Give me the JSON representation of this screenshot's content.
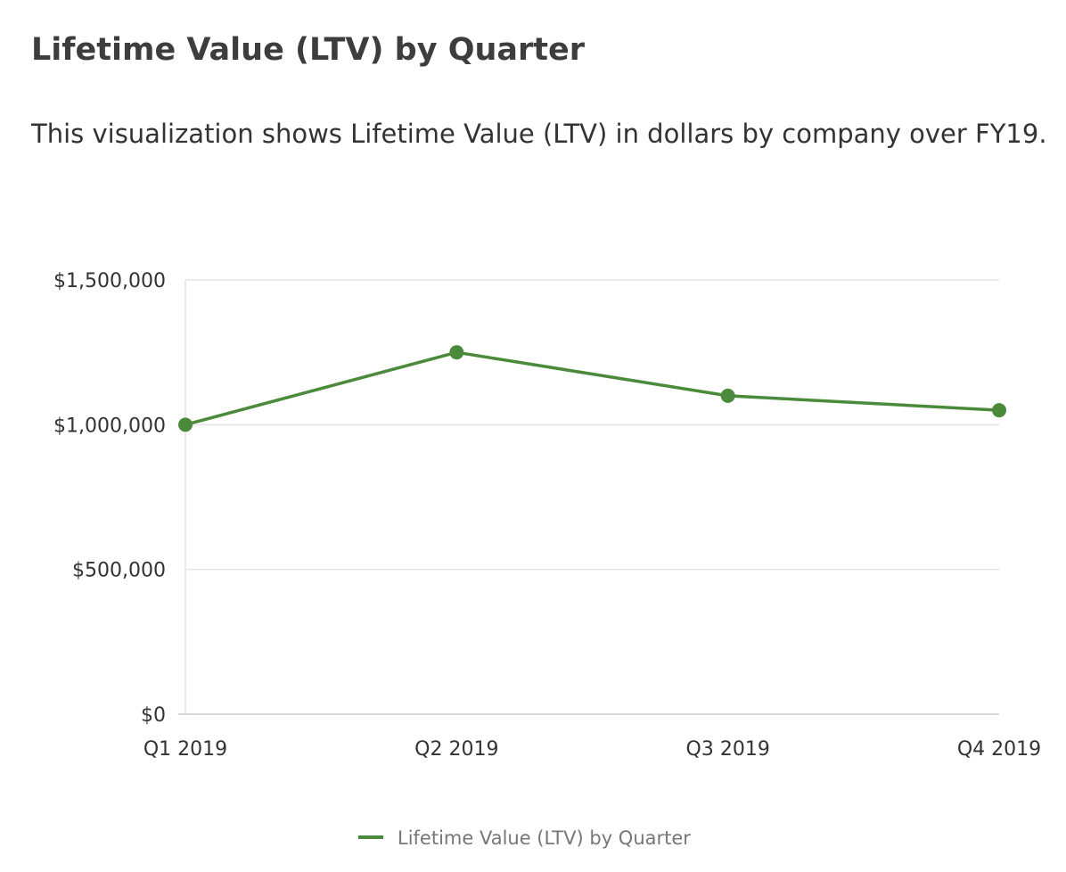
{
  "page": {
    "title": "Lifetime Value (LTV) by Quarter",
    "description": "This visualization shows Lifetime Value (LTV) in dollars by company over FY19."
  },
  "colors": {
    "series": "#4a8a3a",
    "grid": "#e4e4e4",
    "axis": "#cccccc"
  },
  "chart_data": {
    "type": "line",
    "categories": [
      "Q1 2019",
      "Q2 2019",
      "Q3 2019",
      "Q4 2019"
    ],
    "series": [
      {
        "name": "Lifetime Value (LTV) by Quarter",
        "values": [
          1000000,
          1250000,
          1100000,
          1050000
        ]
      }
    ],
    "y_ticks": [
      0,
      500000,
      1000000,
      1500000
    ],
    "y_tick_labels": [
      "$0",
      "$500,000",
      "$1,000,000",
      "$1,500,000"
    ],
    "ylim": [
      0,
      1500000
    ],
    "xlabel": "",
    "ylabel": "",
    "grid": true,
    "legend_position": "bottom-center"
  }
}
